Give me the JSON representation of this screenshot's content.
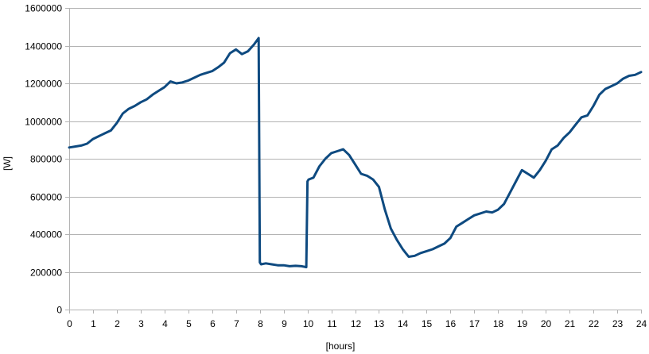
{
  "chart_data": {
    "type": "line",
    "title": "",
    "xlabel": "[hours]",
    "ylabel": "[W]",
    "xlim": [
      0,
      24
    ],
    "ylim": [
      0,
      1600000
    ],
    "x_ticks": [
      0,
      1,
      2,
      3,
      4,
      5,
      6,
      7,
      8,
      9,
      10,
      11,
      12,
      13,
      14,
      15,
      16,
      17,
      18,
      19,
      20,
      21,
      22,
      23,
      24
    ],
    "y_ticks": [
      0,
      200000,
      400000,
      600000,
      800000,
      1000000,
      1200000,
      1400000,
      1600000
    ],
    "y_tick_labels": [
      "0",
      "200000",
      "400000",
      "600000",
      "800000",
      "1000000",
      "1200000",
      "1400000",
      "1600000"
    ],
    "grid": "horizontal",
    "legend": "none",
    "colors": {
      "line": "#0e4a80",
      "grid": "#b3b3b3",
      "axis": "#b3b3b3"
    },
    "series": [
      {
        "x": [
          0,
          0.25,
          0.5,
          0.75,
          1,
          1.25,
          1.5,
          1.75,
          2,
          2.25,
          2.5,
          2.75,
          3,
          3.25,
          3.5,
          3.75,
          4,
          4.25,
          4.5,
          4.75,
          5,
          5.25,
          5.5,
          5.75,
          6,
          6.25,
          6.5,
          6.75,
          7,
          7.25,
          7.5,
          7.75,
          7.95,
          8.0,
          8.05,
          8.25,
          8.5,
          8.75,
          9,
          9.25,
          9.5,
          9.75,
          9.95,
          10.0,
          10.05,
          10.25,
          10.5,
          10.75,
          11,
          11.25,
          11.5,
          11.75,
          12,
          12.25,
          12.5,
          12.75,
          13,
          13.25,
          13.5,
          13.75,
          14,
          14.25,
          14.5,
          14.75,
          15,
          15.25,
          15.5,
          15.75,
          16,
          16.25,
          16.5,
          16.75,
          17,
          17.25,
          17.5,
          17.75,
          18,
          18.25,
          18.5,
          18.75,
          19,
          19.25,
          19.5,
          19.75,
          20,
          20.25,
          20.5,
          20.75,
          21,
          21.25,
          21.5,
          21.75,
          22,
          22.25,
          22.5,
          22.75,
          23,
          23.25,
          23.5,
          23.75,
          24
        ],
        "values": [
          860000,
          865000,
          870000,
          880000,
          905000,
          920000,
          935000,
          950000,
          990000,
          1040000,
          1065000,
          1080000,
          1100000,
          1115000,
          1140000,
          1160000,
          1180000,
          1210000,
          1200000,
          1205000,
          1215000,
          1230000,
          1245000,
          1255000,
          1265000,
          1285000,
          1310000,
          1360000,
          1380000,
          1355000,
          1370000,
          1405000,
          1440000,
          250000,
          240000,
          245000,
          240000,
          235000,
          235000,
          230000,
          232000,
          230000,
          225000,
          680000,
          690000,
          700000,
          760000,
          800000,
          830000,
          840000,
          850000,
          820000,
          770000,
          720000,
          710000,
          690000,
          650000,
          530000,
          430000,
          370000,
          320000,
          280000,
          285000,
          300000,
          310000,
          320000,
          335000,
          350000,
          380000,
          440000,
          460000,
          480000,
          500000,
          510000,
          520000,
          515000,
          530000,
          560000,
          620000,
          680000,
          740000,
          720000,
          700000,
          740000,
          790000,
          850000,
          870000,
          910000,
          940000,
          980000,
          1020000,
          1030000,
          1080000,
          1140000,
          1170000,
          1185000,
          1200000,
          1225000,
          1240000,
          1245000,
          1260000
        ]
      }
    ]
  }
}
